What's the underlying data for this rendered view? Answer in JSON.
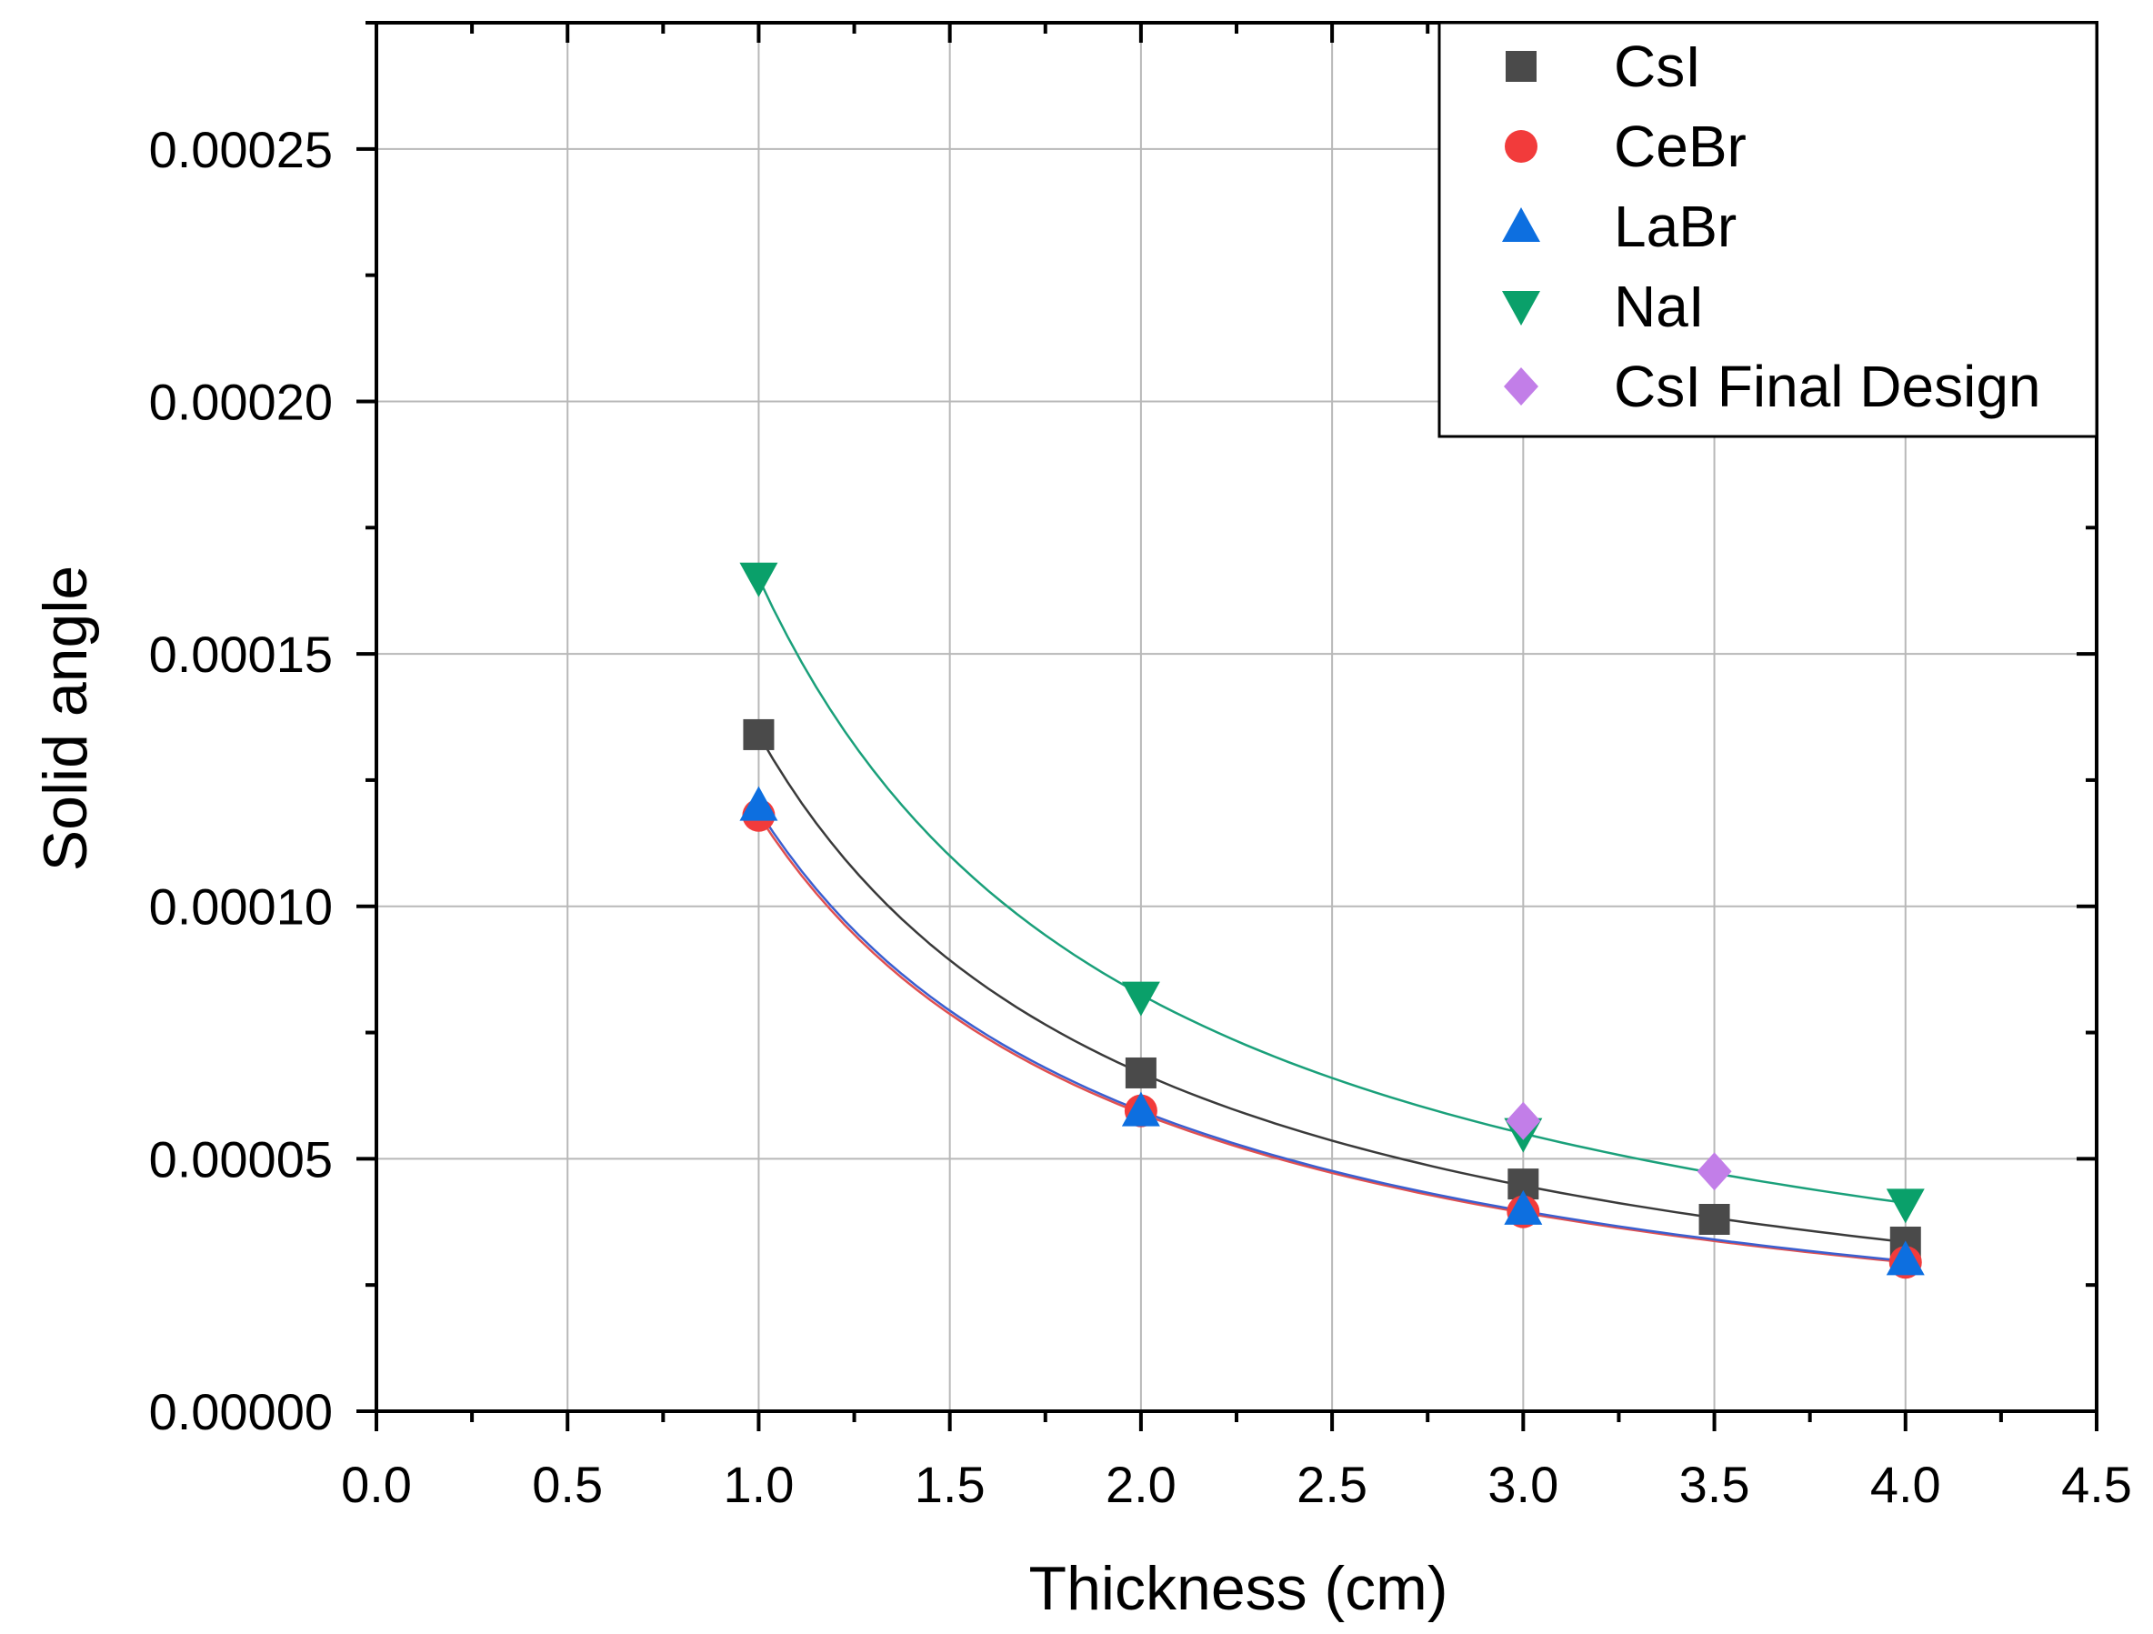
{
  "chart_data": {
    "type": "scatter",
    "title": "",
    "xlabel": "Thickness (cm)",
    "ylabel": "Solid angle",
    "xlim": [
      0.0,
      4.5
    ],
    "ylim": [
      0.0,
      0.000275
    ],
    "xticks": [
      "0.0",
      "0.5",
      "1.0",
      "1.5",
      "2.0",
      "2.5",
      "3.0",
      "3.5",
      "4.0",
      "4.5"
    ],
    "xtick_values": [
      0.0,
      0.5,
      1.0,
      1.5,
      2.0,
      2.5,
      3.0,
      3.5,
      4.0,
      4.5
    ],
    "yticks": [
      "0.00000",
      "0.00005",
      "0.00010",
      "0.00015",
      "0.00020",
      "0.00025"
    ],
    "ytick_values": [
      0.0,
      5e-05,
      0.0001,
      0.00015,
      0.0002,
      0.00025
    ],
    "grid": true,
    "legend_position": "top-right",
    "series": [
      {
        "name": "CsI",
        "marker": "square",
        "color": "#4a4a4a",
        "fit_color": "#3a3a3a",
        "x": [
          1.0,
          2.0,
          3.0,
          3.5,
          4.0
        ],
        "y": [
          0.000134,
          6.7e-05,
          4.5e-05,
          3.8e-05,
          3.35e-05
        ],
        "fit": {
          "a": 0.000134,
          "x_start": 1.0,
          "x_end": 4.0
        }
      },
      {
        "name": "CeBr",
        "marker": "circle",
        "color": "#f23b3b",
        "fit_color": "#e05050",
        "x": [
          1.0,
          2.0,
          3.0,
          4.0
        ],
        "y": [
          0.000118,
          5.95e-05,
          3.95e-05,
          2.95e-05
        ],
        "fit": {
          "a": 0.000118,
          "x_start": 1.0,
          "x_end": 4.0
        }
      },
      {
        "name": "LaBr",
        "marker": "triangle-up",
        "color": "#0d6fe0",
        "fit_color": "#3a5fd0",
        "x": [
          1.0,
          2.0,
          3.0,
          4.0
        ],
        "y": [
          0.00012,
          5.95e-05,
          4e-05,
          3e-05
        ],
        "fit": {
          "a": 0.000119,
          "x_start": 1.0,
          "x_end": 4.0
        }
      },
      {
        "name": "NaI",
        "marker": "triangle-down",
        "color": "#0aa06a",
        "fit_color": "#1aa07a",
        "x": [
          1.0,
          2.0,
          3.0,
          4.0
        ],
        "y": [
          0.000165,
          8.2e-05,
          5.5e-05,
          4.1e-05
        ],
        "fit": {
          "a": 0.000165,
          "x_start": 1.0,
          "x_end": 4.0
        }
      },
      {
        "name": "CsI Final Design",
        "marker": "diamond",
        "color": "#c27ee8",
        "x": [
          3.0,
          3.5
        ],
        "y": [
          5.75e-05,
          4.75e-05
        ]
      }
    ]
  }
}
